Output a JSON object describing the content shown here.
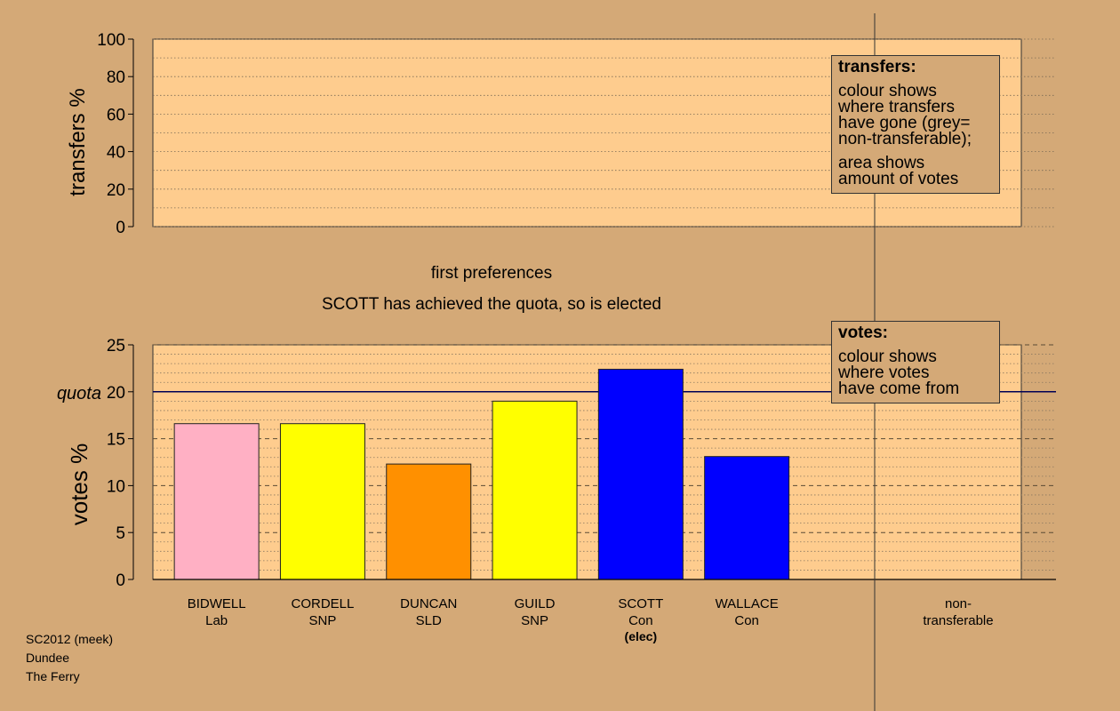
{
  "colors": {
    "background": "#d4a977",
    "plot_area": "#fecc8e",
    "Lab": "#ffb0c4",
    "SNP": "#ffff00",
    "SLD": "#ff9000",
    "Con": "#0000ff"
  },
  "header": {
    "stage": "first preferences",
    "message": "SCOTT has achieved the quota, so is elected"
  },
  "legend_transfers": {
    "title": "transfers:",
    "line1": "colour shows",
    "line2": "where transfers",
    "line3": "have gone (grey=",
    "line4": "non-transferable);",
    "line5": "area shows",
    "line6": "amount of votes"
  },
  "legend_votes": {
    "title": "votes:",
    "line1": "colour shows",
    "line2": "where votes",
    "line3": "have come from"
  },
  "footer": {
    "line1": "SC2012 (meek)",
    "line2": "Dundee",
    "line3": "The Ferry"
  },
  "chart_data": [
    {
      "type": "bar",
      "panel": "transfers",
      "ylabel": "transfers %",
      "ylim": [
        0,
        100
      ],
      "yticks": [
        "0",
        "20",
        "40",
        "60",
        "80",
        "100"
      ],
      "categories": [],
      "values": []
    },
    {
      "type": "bar",
      "panel": "votes",
      "ylabel": "votes %",
      "ylim": [
        0,
        25
      ],
      "yticks": [
        "0",
        "5",
        "10",
        "15",
        "20",
        "25"
      ],
      "quota": {
        "label": "quota",
        "value": 20
      },
      "grid": true,
      "bars": [
        {
          "name": "BIDWELL",
          "party": "Lab",
          "value": 16.6,
          "color": "#ffb0c4",
          "note": ""
        },
        {
          "name": "CORDELL",
          "party": "SNP",
          "value": 16.6,
          "color": "#ffff00",
          "note": ""
        },
        {
          "name": "DUNCAN",
          "party": "SLD",
          "value": 12.3,
          "color": "#ff9000",
          "note": ""
        },
        {
          "name": "GUILD",
          "party": "SNP",
          "value": 19.0,
          "color": "#ffff00",
          "note": ""
        },
        {
          "name": "SCOTT",
          "party": "Con",
          "value": 22.4,
          "color": "#0000ff",
          "note": "(elec)"
        },
        {
          "name": "WALLACE",
          "party": "Con",
          "value": 13.1,
          "color": "#0000ff",
          "note": ""
        }
      ],
      "nontransferable": {
        "line1": "non-",
        "line2": "transferable"
      }
    }
  ]
}
